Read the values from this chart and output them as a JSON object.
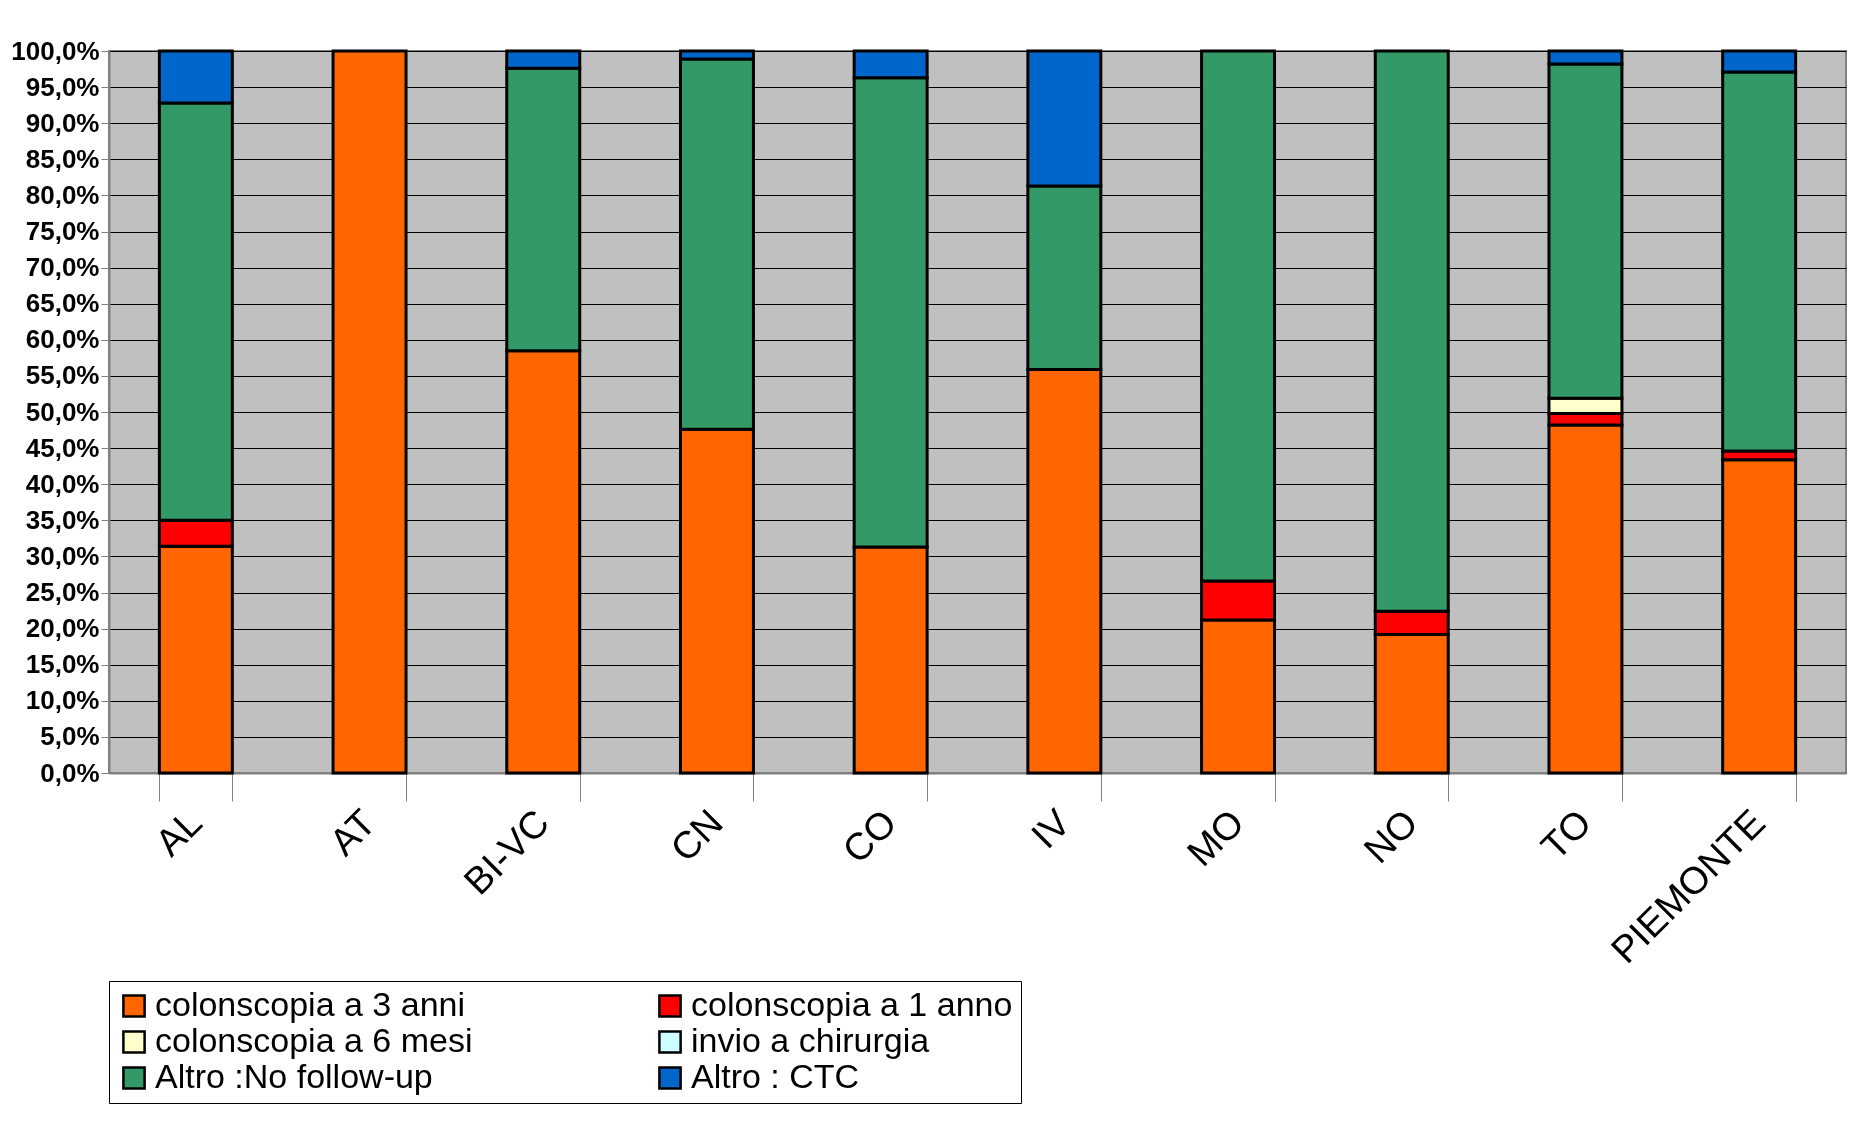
{
  "chart_data": {
    "type": "bar",
    "stacked": true,
    "categories": [
      "AL",
      "AT",
      "BI-VC",
      "CN",
      "CO",
      "IV",
      "MO",
      "NO",
      "TO",
      "PIEMONTE"
    ],
    "series": [
      {
        "name": "colonscopia a 3 anni",
        "color": "#ff6600",
        "values": [
          31.4,
          100,
          58.5,
          47.6,
          31.3,
          55.9,
          21.2,
          19.2,
          48.2,
          43.4
        ]
      },
      {
        "name": "colonscopia a 1 anno",
        "color": "#ff0000",
        "values": [
          3.6,
          null,
          null,
          null,
          null,
          null,
          5.4,
          3.2,
          1.6,
          1.2
        ]
      },
      {
        "name": "colonscopia a 6 mesi",
        "color": "#ffffcc",
        "values": [
          null,
          null,
          null,
          null,
          null,
          null,
          null,
          null,
          2.1,
          null
        ]
      },
      {
        "name": "invio a chirurgia",
        "color": "#ccffff",
        "values": [
          null,
          null,
          null,
          null,
          null,
          null,
          null,
          null,
          null,
          null
        ]
      },
      {
        "name": "Altro :No follow-up",
        "color": "#339966",
        "values": [
          57.8,
          null,
          39.1,
          51.3,
          65.0,
          25.4,
          73.4,
          77.6,
          46.3,
          52.5
        ]
      },
      {
        "name": "Altro : CTC",
        "color": "#0066cc",
        "values": [
          7.2,
          null,
          2.4,
          1.1,
          3.7,
          18.7,
          null,
          null,
          1.8,
          2.9
        ]
      }
    ],
    "ylim": [
      0,
      100
    ],
    "yticks": [
      {
        "value": 0,
        "label": "0,0%"
      },
      {
        "value": 5,
        "label": "5,0%"
      },
      {
        "value": 10,
        "label": "10,0%"
      },
      {
        "value": 15,
        "label": "15,0%"
      },
      {
        "value": 20,
        "label": "20,0%"
      },
      {
        "value": 25,
        "label": "25,0%"
      },
      {
        "value": 30,
        "label": "30,0%"
      },
      {
        "value": 35,
        "label": "35,0%"
      },
      {
        "value": 40,
        "label": "40,0%"
      },
      {
        "value": 45,
        "label": "45,0%"
      },
      {
        "value": 50,
        "label": "50,0%"
      },
      {
        "value": 55,
        "label": "55,0%"
      },
      {
        "value": 60,
        "label": "60,0%"
      },
      {
        "value": 65,
        "label": "65,0%"
      },
      {
        "value": 70,
        "label": "70,0%"
      },
      {
        "value": 75,
        "label": "75,0%"
      },
      {
        "value": 80,
        "label": "80,0%"
      },
      {
        "value": 85,
        "label": "85,0%"
      },
      {
        "value": 90,
        "label": "90,0%"
      },
      {
        "value": 95,
        "label": "95,0%"
      },
      {
        "value": 100,
        "label": "100,0%"
      }
    ],
    "grid": "y",
    "legend": "bottom"
  }
}
